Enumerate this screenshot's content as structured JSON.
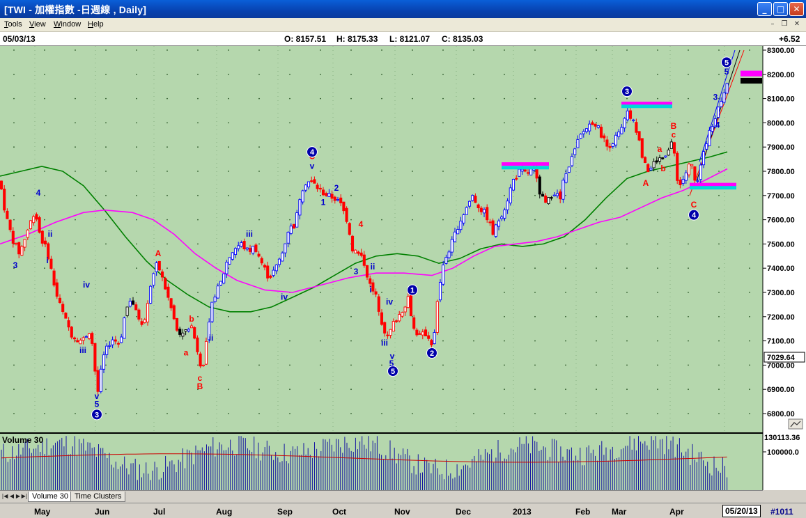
{
  "window": {
    "title": "[TWI - 加權指數 -日週線 , Daily]",
    "buttons": {
      "minimize": "_",
      "maximize": "□",
      "close": "✕"
    }
  },
  "menu": {
    "items": [
      {
        "key": "T",
        "rest": "ools"
      },
      {
        "key": "V",
        "rest": "iew"
      },
      {
        "key": "W",
        "rest": "indow"
      },
      {
        "key": "H",
        "rest": "elp"
      }
    ]
  },
  "info": {
    "date": "05/03/13",
    "open": "O: 8157.51",
    "high": "H: 8175.33",
    "low": "L: 8121.07",
    "close": "C: 8135.03",
    "change": "+6.52"
  },
  "colors": {
    "background": "#b5d7ad",
    "up": "#0000ff",
    "down": "#ff0000",
    "neutral": "#000000",
    "ma_green": "#008000",
    "ma_magenta": "#ff00ff",
    "wave_label_blue": "#0000cd",
    "wave_label_red": "#ff0000",
    "circle_fill": "#0000aa",
    "target_magenta": "#ff00ff",
    "target_cyan": "#00d8d8"
  },
  "price_axis": {
    "ticks": [
      "8300.00",
      "8200.00",
      "8100.00",
      "8000.00",
      "7900.00",
      "7800.00",
      "7700.00",
      "7600.00",
      "7500.00",
      "7400.00",
      "7300.00",
      "7200.00",
      "7100.00",
      "7000.00",
      "6900.00",
      "6800.00"
    ],
    "current_label": "7029.64"
  },
  "volume": {
    "title": "Volume 30",
    "axis_top": "130113.36",
    "axis_mid": "100000.0"
  },
  "tabs": [
    {
      "label": "Volume 30"
    },
    {
      "label": "Time Clusters"
    }
  ],
  "date_axis": {
    "months": [
      "May",
      "Jun",
      "Jul",
      "Aug",
      "Sep",
      "Oct",
      "Nov",
      "Dec",
      "2013",
      "Feb",
      "Mar",
      "Apr"
    ],
    "end_date": "05/20/13",
    "bar_count": "#1011"
  },
  "wave_labels": [
    {
      "t": "4",
      "c": "blue"
    },
    {
      "t": "3",
      "c": "blue"
    },
    {
      "t": "ii",
      "c": "blue"
    },
    {
      "t": "i",
      "c": "blue"
    },
    {
      "t": "iii",
      "c": "blue"
    },
    {
      "t": "iv",
      "c": "blue"
    },
    {
      "t": "v",
      "c": "blue"
    },
    {
      "t": "5",
      "c": "blue"
    },
    {
      "t": "A",
      "c": "red"
    },
    {
      "t": "b",
      "c": "red"
    },
    {
      "t": "a",
      "c": "red"
    },
    {
      "t": "c",
      "c": "red"
    },
    {
      "t": "B",
      "c": "red"
    },
    {
      "t": "ii",
      "c": "blue"
    },
    {
      "t": "iii",
      "c": "blue"
    },
    {
      "t": "iv",
      "c": "blue"
    },
    {
      "t": "C",
      "c": "red"
    },
    {
      "t": "v",
      "c": "blue"
    },
    {
      "t": "2",
      "c": "blue"
    },
    {
      "t": "1",
      "c": "blue"
    },
    {
      "t": "4",
      "c": "red"
    },
    {
      "t": "3",
      "c": "blue"
    },
    {
      "t": "ii",
      "c": "blue"
    },
    {
      "t": "i",
      "c": "blue"
    },
    {
      "t": "iv",
      "c": "blue"
    },
    {
      "t": "iii",
      "c": "blue"
    },
    {
      "t": "v",
      "c": "blue"
    },
    {
      "t": "5",
      "c": "blue"
    },
    {
      "t": "A",
      "c": "red"
    },
    {
      "t": "b",
      "c": "red"
    },
    {
      "t": "a",
      "c": "red"
    },
    {
      "t": "B",
      "c": "red"
    },
    {
      "t": "c",
      "c": "red"
    },
    {
      "t": "C",
      "c": "red"
    },
    {
      "t": "3",
      "c": "blue"
    },
    {
      "t": "4",
      "c": "blue"
    },
    {
      "t": "5",
      "c": "blue"
    }
  ],
  "circle_labels": [
    "3",
    "4",
    "5",
    "1",
    "2",
    "3",
    "4",
    "5"
  ]
}
